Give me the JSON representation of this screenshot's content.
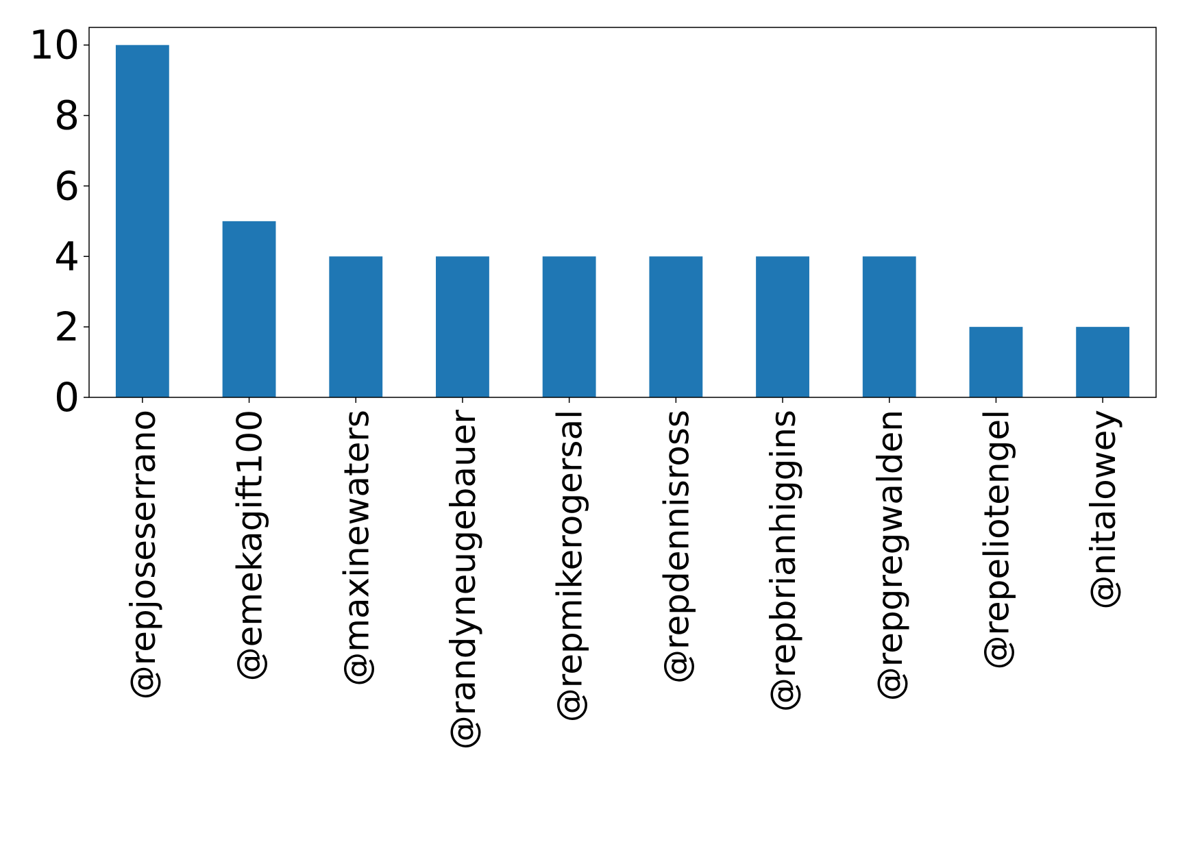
{
  "chart_data": {
    "type": "bar",
    "title": "",
    "xlabel": "",
    "ylabel": "",
    "categories": [
      "@repjoseserrano",
      "@emekagift100",
      "@maxinewaters",
      "@randyneugebauer",
      "@repmikerogersal",
      "@repdennisross",
      "@repbrianhiggins",
      "@repgregwalden",
      "@repeliotengel",
      "@nitalowey"
    ],
    "values": [
      10,
      5,
      4,
      4,
      4,
      4,
      4,
      4,
      2,
      2
    ],
    "ylim": [
      0,
      10.5
    ],
    "yticks": [
      0,
      2,
      4,
      6,
      8,
      10
    ],
    "bar_color": "#1f77b4",
    "grid": false,
    "legend": "none"
  }
}
